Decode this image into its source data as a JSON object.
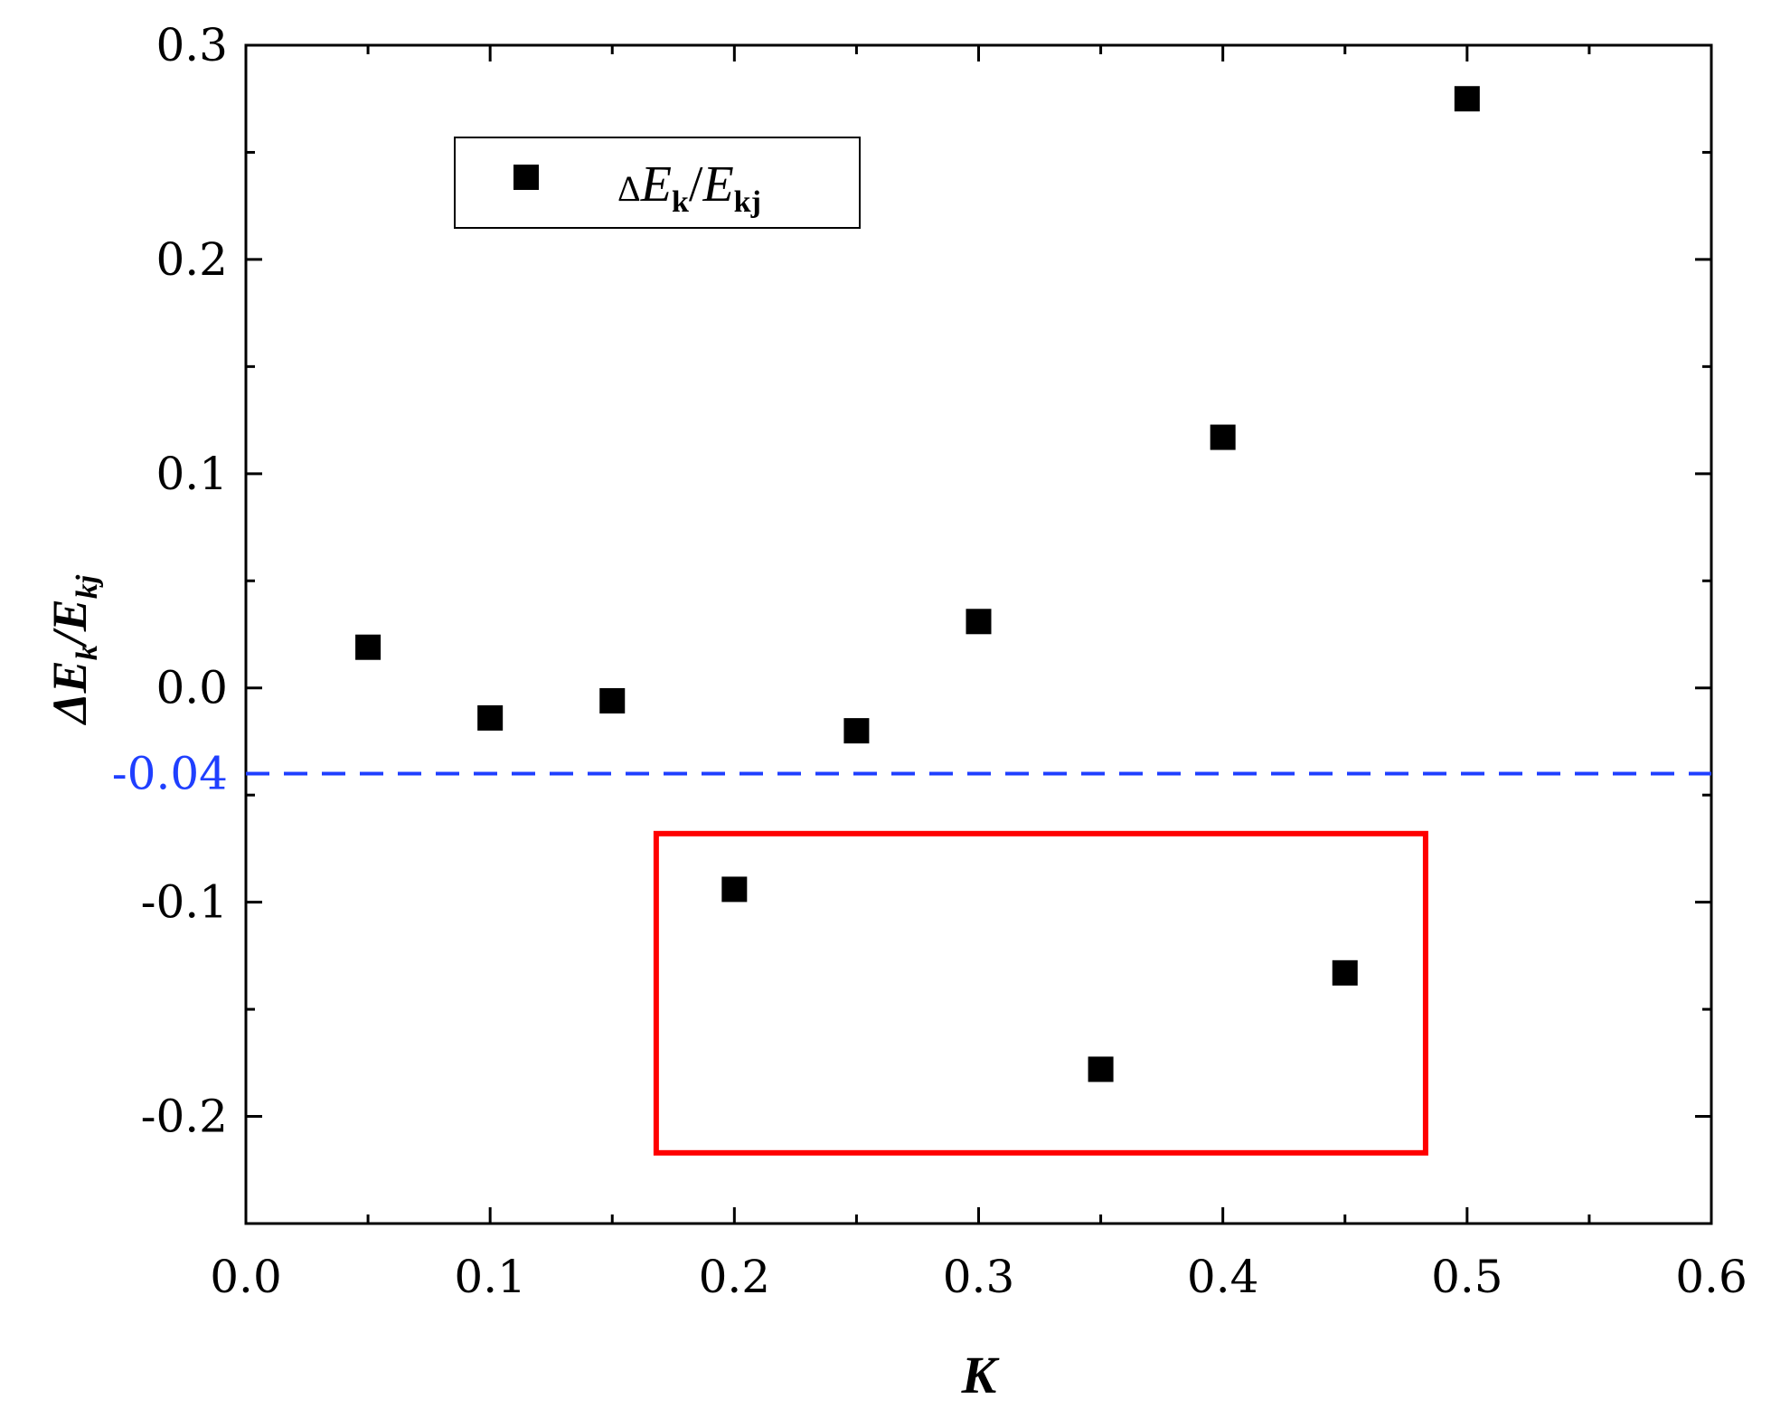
{
  "chart_data": {
    "type": "scatter",
    "series": [
      {
        "name": "ΔEk/Ekj",
        "marker": "square",
        "color": "#000000",
        "points": [
          {
            "x": 0.05,
            "y": 0.019
          },
          {
            "x": 0.1,
            "y": -0.014
          },
          {
            "x": 0.15,
            "y": -0.006
          },
          {
            "x": 0.2,
            "y": -0.094
          },
          {
            "x": 0.25,
            "y": -0.02
          },
          {
            "x": 0.3,
            "y": 0.031
          },
          {
            "x": 0.35,
            "y": -0.178
          },
          {
            "x": 0.4,
            "y": 0.117
          },
          {
            "x": 0.45,
            "y": -0.133
          },
          {
            "x": 0.5,
            "y": 0.275
          }
        ]
      }
    ],
    "xlim": [
      0.0,
      0.6
    ],
    "ylim": [
      -0.25,
      0.3
    ],
    "x_ticks": [
      {
        "value": 0.0,
        "label": "0.0"
      },
      {
        "value": 0.1,
        "label": "0.1"
      },
      {
        "value": 0.2,
        "label": "0.2"
      },
      {
        "value": 0.3,
        "label": "0.3"
      },
      {
        "value": 0.4,
        "label": "0.4"
      },
      {
        "value": 0.5,
        "label": "0.5"
      },
      {
        "value": 0.6,
        "label": "0.6"
      }
    ],
    "y_ticks": [
      {
        "value": 0.3,
        "label": "0.3"
      },
      {
        "value": 0.2,
        "label": "0.2"
      },
      {
        "value": 0.1,
        "label": "0.1"
      },
      {
        "value": 0.0,
        "label": "0.0"
      },
      {
        "value": -0.1,
        "label": "-0.1"
      },
      {
        "value": -0.2,
        "label": "-0.2"
      }
    ],
    "x_label": {
      "main": "K"
    },
    "y_label": {
      "delta": "Δ",
      "main": "E",
      "sub1": "k",
      "slash": "/",
      "main2": "E",
      "sub2": "kj"
    },
    "legend": {
      "position": "top-left",
      "entry": {
        "delta": "Δ",
        "main": "E",
        "sub1": "k",
        "slash": "/",
        "main2": "E",
        "sub2": "kj"
      }
    },
    "reference_line": {
      "y": -0.04,
      "label": "-0.04",
      "color": "#1f3fff",
      "style": "dashed"
    },
    "highlight_box": {
      "x_range": [
        0.168,
        0.483
      ],
      "y_range": [
        -0.217,
        -0.068
      ],
      "color": "#ff0000"
    },
    "grid": false
  }
}
